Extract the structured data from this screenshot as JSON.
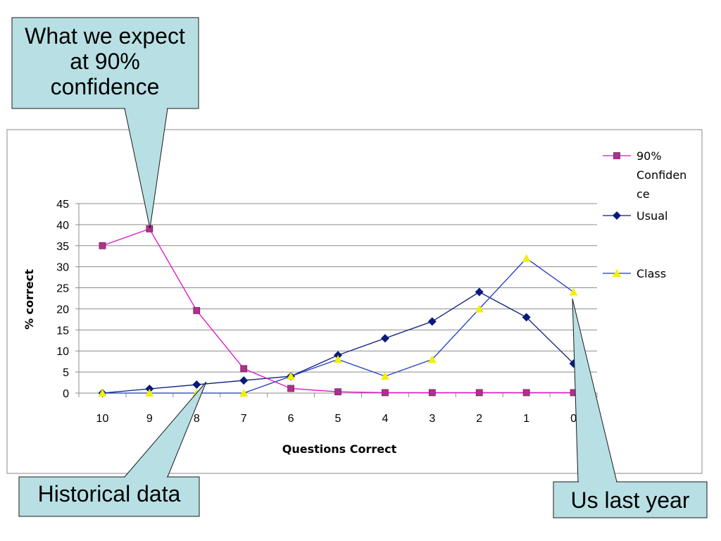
{
  "chart_data": {
    "type": "line",
    "title": "",
    "xlabel": "Questions Correct",
    "ylabel": "% correct",
    "categories": [
      "10",
      "9",
      "8",
      "7",
      "6",
      "5",
      "4",
      "3",
      "2",
      "1",
      "0"
    ],
    "yticks": [
      "0",
      "5",
      "10",
      "15",
      "20",
      "25",
      "30",
      "35",
      "40",
      "45"
    ],
    "ylim": [
      0,
      45
    ],
    "grid": true,
    "legend_position": "right",
    "series": [
      {
        "name": "90% Confidence",
        "legend_lines": [
          "90%",
          "Confiden",
          "ce"
        ],
        "color": "#e010c8",
        "marker_color": "#b0308c",
        "marker": "square",
        "values": [
          35,
          39,
          19.6,
          5.8,
          1.1,
          0.3,
          0.1,
          0.1,
          0.1,
          0.1,
          0.1
        ]
      },
      {
        "name": "Usual",
        "legend_lines": [
          "Usual"
        ],
        "color": "#0a1a7a",
        "marker_color": "#0a1a7a",
        "marker": "diamond",
        "values": [
          0,
          1,
          2,
          3,
          4,
          9,
          13,
          17,
          24,
          18,
          7
        ]
      },
      {
        "name": "Class",
        "legend_lines": [
          "Class"
        ],
        "color": "#1a36c8",
        "marker_color": "#f0f000",
        "marker": "triangle",
        "values": [
          0,
          0,
          0,
          0,
          4,
          8,
          4,
          8,
          20,
          32,
          24
        ]
      }
    ]
  },
  "callouts": [
    {
      "id": "expect",
      "lines": [
        "What we expect",
        "at 90%",
        "confidence"
      ]
    },
    {
      "id": "historical",
      "lines": [
        "Historical data"
      ]
    },
    {
      "id": "us",
      "lines": [
        "Us last year"
      ]
    }
  ],
  "colors": {
    "callout_fill": "#b8e0e4",
    "grid": "#8c8c8c",
    "frame": "#888888"
  }
}
